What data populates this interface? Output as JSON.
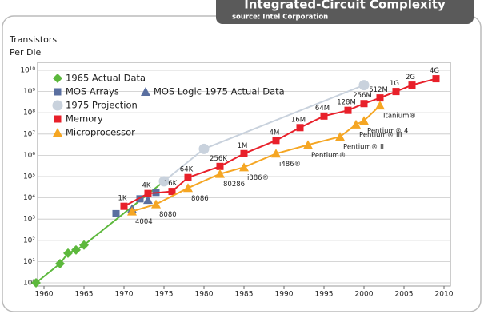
{
  "chart_data": {
    "type": "line",
    "title": "Integrated-Circuit Complexity",
    "subtitle": "source: Intel Corporation",
    "y_label": [
      "Transistors",
      "Per Die"
    ],
    "log_y": true,
    "grid": true,
    "legend": "upper left",
    "xlim": [
      1960,
      2010
    ],
    "xticks": [
      1960,
      1965,
      1970,
      1975,
      1980,
      1985,
      1990,
      1995,
      2000,
      2005,
      2010
    ],
    "ylim": [
      1,
      10000000000
    ],
    "yticks": [
      {
        "value": 1,
        "label": "10⁰"
      },
      {
        "value": 10,
        "label": "10¹"
      },
      {
        "value": 100,
        "label": "10²"
      },
      {
        "value": 1000,
        "label": "10³"
      },
      {
        "value": 10000,
        "label": "10⁴"
      },
      {
        "value": 100000,
        "label": "10⁵"
      },
      {
        "value": 1000000,
        "label": "10⁶"
      },
      {
        "value": 10000000,
        "label": "10⁷"
      },
      {
        "value": 100000000,
        "label": "10⁸"
      },
      {
        "value": 1000000000,
        "label": "10⁹"
      },
      {
        "value": 10000000000,
        "label": "10¹⁰"
      }
    ],
    "series": [
      {
        "name": "1965 Actual Data",
        "color": "#5cb83c",
        "marker": "diamond",
        "line": true,
        "x": [
          1959,
          1962,
          1963,
          1964,
          1965,
          1975
        ],
        "values": [
          1,
          8,
          25,
          35,
          60,
          60000
        ]
      },
      {
        "name": "MOS Arrays",
        "color": "#5a6fa0",
        "marker": "square",
        "line": false,
        "x": [
          1969,
          1972,
          1974
        ],
        "values": [
          1800,
          9000,
          18000
        ]
      },
      {
        "name": "MOS Logic 1975 Actual Data",
        "color": "#5a6fa0",
        "marker": "triangle",
        "line": false,
        "x": [
          1971,
          1973
        ],
        "values": [
          3000,
          8000
        ]
      },
      {
        "name": "1975 Projection",
        "color": "#c9d2dd",
        "marker": "circle",
        "line": true,
        "x": [
          1975,
          1980,
          2000
        ],
        "values": [
          60000,
          2000000,
          2000000000
        ]
      },
      {
        "name": "Memory",
        "color": "#e8202a",
        "marker": "square",
        "line": true,
        "x": [
          1970,
          1973,
          1976,
          1978,
          1982,
          1985,
          1989,
          1992,
          1995,
          1998,
          2000,
          2002,
          2004,
          2006,
          2009
        ],
        "values": [
          4000,
          16000,
          20000,
          90000,
          300000,
          1200000,
          5000000,
          20000000,
          70000000,
          130000000,
          270000000,
          500000000,
          1000000000,
          2000000000,
          4000000000
        ],
        "labels": [
          "1K",
          "4K",
          "16K",
          "64K",
          "256K",
          "1M",
          "4M",
          "16M",
          "64M",
          "128M",
          "256M",
          "512M",
          "1G",
          "2G",
          "4G"
        ]
      },
      {
        "name": "Microprocessor",
        "color": "#f5a623",
        "marker": "triangle",
        "line": true,
        "x": [
          1971,
          1974,
          1978,
          1982,
          1985,
          1989,
          1993,
          1997,
          1999,
          2000,
          2002
        ],
        "values": [
          2300,
          5000,
          29000,
          134000,
          275000,
          1200000,
          3100000,
          7500000,
          28000000,
          42000000,
          220000000
        ],
        "labels": [
          "4004",
          "8080",
          "8086",
          "80286",
          "i386®",
          "i486®",
          "Pentium®",
          "Pentium® II",
          "Pentium® III",
          "Pentium® 4",
          "Itanium®"
        ]
      }
    ]
  }
}
